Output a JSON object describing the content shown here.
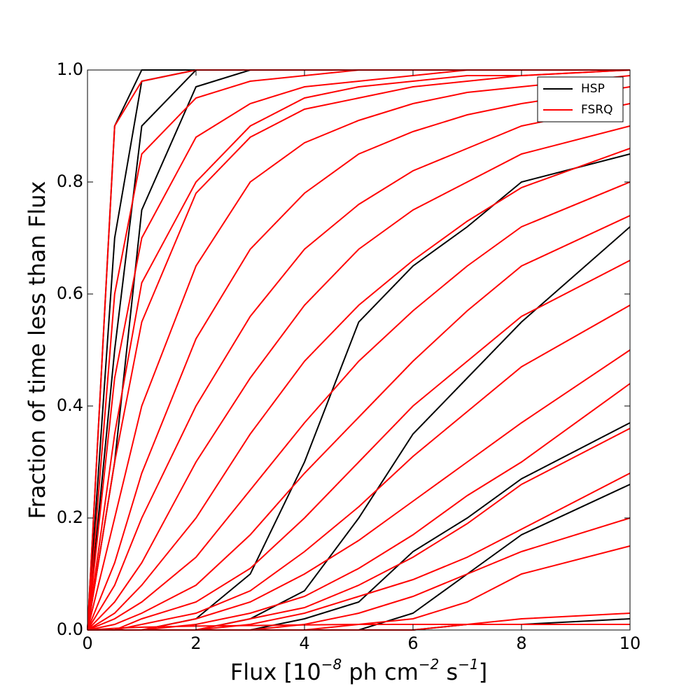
{
  "chart_data": {
    "type": "line",
    "xlabel": [
      "Flux [10",
      "−8",
      " ph cm",
      "−2",
      " s",
      "−1",
      "]"
    ],
    "ylabel": "Fraction of time less than Flux",
    "x": [
      0,
      0.5,
      1,
      2,
      3,
      4,
      5,
      6,
      7,
      8,
      10
    ],
    "xlim": [
      0,
      10
    ],
    "xticks": [
      0,
      2,
      4,
      6,
      8,
      10
    ],
    "ylim": [
      0,
      1
    ],
    "yticks": [
      {
        "value": 0,
        "label": "0.0"
      },
      0.2,
      0.4,
      0.6,
      0.8,
      {
        "value": 1,
        "label": "1.0"
      }
    ],
    "legend": "upper right",
    "series": [
      {
        "name": "HSP",
        "color": "#000000",
        "curves": [
          {
            "values": [
              0,
              0.9,
              1,
              1,
              1,
              1,
              1,
              1,
              1,
              1,
              1
            ]
          },
          {
            "values": [
              0,
              0.7,
              0.98,
              1,
              1,
              1,
              1,
              1,
              1,
              1,
              1
            ]
          },
          {
            "values": [
              0,
              0.5,
              0.9,
              1,
              1,
              1,
              1,
              1,
              1,
              1,
              1
            ]
          },
          {
            "values": [
              0,
              0.3,
              0.75,
              0.97,
              1,
              1,
              1,
              1,
              1,
              1,
              1
            ]
          },
          {
            "values": [
              0,
              0,
              0,
              0.02,
              0.1,
              0.3,
              0.55,
              0.65,
              0.72,
              0.8,
              0.85
            ]
          },
          {
            "values": [
              0,
              0,
              0,
              0,
              0.02,
              0.07,
              0.2,
              0.35,
              0.45,
              0.55,
              0.72
            ]
          },
          {
            "values": [
              0,
              0,
              0,
              0,
              0,
              0.02,
              0.05,
              0.14,
              0.2,
              0.27,
              0.37
            ]
          },
          {
            "values": [
              0,
              0,
              0,
              0,
              0,
              0,
              0,
              0.03,
              0.1,
              0.17,
              0.26
            ]
          },
          {
            "values": [
              0,
              0,
              0,
              0,
              0,
              0,
              0,
              0,
              0.01,
              0.01,
              0.02
            ]
          }
        ]
      },
      {
        "name": "FSRQ",
        "color": "#ff0000",
        "curves": [
          {
            "values": [
              0,
              0.9,
              0.98,
              1,
              1,
              1,
              1,
              1,
              1,
              1,
              1
            ]
          },
          {
            "values": [
              0,
              0.6,
              0.85,
              0.95,
              0.98,
              0.99,
              1,
              1,
              1,
              1,
              1
            ]
          },
          {
            "values": [
              0,
              0.45,
              0.7,
              0.88,
              0.94,
              0.97,
              0.98,
              0.99,
              1,
              1,
              1
            ]
          },
          {
            "values": [
              0,
              0.35,
              0.62,
              0.8,
              0.9,
              0.95,
              0.97,
              0.98,
              0.99,
              0.99,
              1
            ]
          },
          {
            "values": [
              0,
              0.3,
              0.55,
              0.78,
              0.88,
              0.93,
              0.95,
              0.97,
              0.98,
              0.99,
              1
            ]
          },
          {
            "values": [
              0,
              0.2,
              0.4,
              0.65,
              0.8,
              0.87,
              0.91,
              0.94,
              0.96,
              0.97,
              0.99
            ]
          },
          {
            "values": [
              0,
              0.12,
              0.28,
              0.52,
              0.68,
              0.78,
              0.85,
              0.89,
              0.92,
              0.94,
              0.97
            ]
          },
          {
            "values": [
              0,
              0.08,
              0.2,
              0.4,
              0.56,
              0.68,
              0.76,
              0.82,
              0.86,
              0.9,
              0.94
            ]
          },
          {
            "values": [
              0,
              0.05,
              0.12,
              0.3,
              0.45,
              0.58,
              0.68,
              0.75,
              0.8,
              0.85,
              0.9
            ]
          },
          {
            "values": [
              0,
              0.03,
              0.08,
              0.2,
              0.35,
              0.48,
              0.58,
              0.66,
              0.73,
              0.79,
              0.86
            ]
          },
          {
            "values": [
              0,
              0.02,
              0.05,
              0.13,
              0.25,
              0.37,
              0.48,
              0.57,
              0.65,
              0.72,
              0.8
            ]
          },
          {
            "values": [
              0,
              0.01,
              0.03,
              0.08,
              0.17,
              0.28,
              0.38,
              0.48,
              0.57,
              0.65,
              0.74
            ]
          },
          {
            "values": [
              0,
              0,
              0.02,
              0.05,
              0.11,
              0.2,
              0.3,
              0.4,
              0.48,
              0.56,
              0.66
            ]
          },
          {
            "values": [
              0,
              0,
              0.01,
              0.03,
              0.07,
              0.14,
              0.22,
              0.31,
              0.39,
              0.47,
              0.58
            ]
          },
          {
            "values": [
              0,
              0,
              0,
              0.02,
              0.05,
              0.1,
              0.16,
              0.23,
              0.3,
              0.37,
              0.5
            ]
          },
          {
            "values": [
              0,
              0,
              0,
              0.01,
              0.03,
              0.06,
              0.11,
              0.17,
              0.24,
              0.3,
              0.44
            ]
          },
          {
            "values": [
              0,
              0,
              0,
              0,
              0.02,
              0.04,
              0.08,
              0.13,
              0.19,
              0.26,
              0.36
            ]
          },
          {
            "values": [
              0,
              0,
              0,
              0,
              0.01,
              0.03,
              0.06,
              0.09,
              0.13,
              0.18,
              0.28
            ]
          },
          {
            "values": [
              0,
              0,
              0,
              0,
              0,
              0.01,
              0.03,
              0.06,
              0.1,
              0.14,
              0.2
            ]
          },
          {
            "values": [
              0,
              0,
              0,
              0,
              0,
              0,
              0.01,
              0.02,
              0.05,
              0.1,
              0.15
            ]
          },
          {
            "values": [
              0,
              0,
              0,
              0,
              0,
              0,
              0,
              0,
              0.01,
              0.02,
              0.03
            ]
          },
          {
            "values": [
              0,
              0.003,
              0.005,
              0.007,
              0.008,
              0.009,
              0.01,
              0.01,
              0.01,
              0.01,
              0.01
            ]
          }
        ]
      }
    ]
  }
}
